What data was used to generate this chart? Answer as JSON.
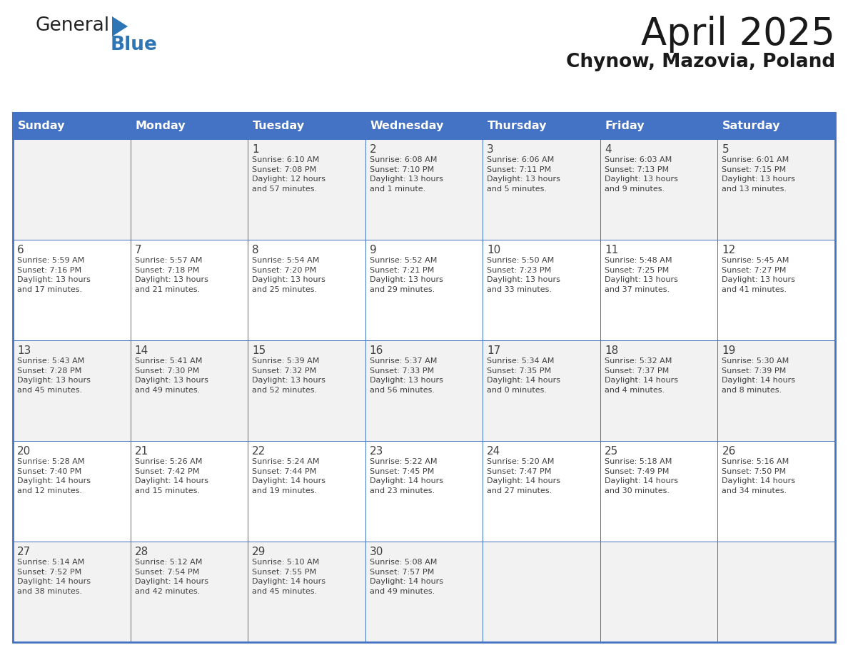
{
  "title": "April 2025",
  "subtitle": "Chynow, Mazovia, Poland",
  "header_bg": "#4472C4",
  "header_text_color": "#FFFFFF",
  "cell_bg_white": "#FFFFFF",
  "cell_bg_gray": "#F2F2F2",
  "border_color": "#4472C4",
  "text_color": "#404040",
  "days_of_week": [
    "Sunday",
    "Monday",
    "Tuesday",
    "Wednesday",
    "Thursday",
    "Friday",
    "Saturday"
  ],
  "weeks": [
    [
      {
        "day": "",
        "info": ""
      },
      {
        "day": "",
        "info": ""
      },
      {
        "day": "1",
        "info": "Sunrise: 6:10 AM\nSunset: 7:08 PM\nDaylight: 12 hours\nand 57 minutes."
      },
      {
        "day": "2",
        "info": "Sunrise: 6:08 AM\nSunset: 7:10 PM\nDaylight: 13 hours\nand 1 minute."
      },
      {
        "day": "3",
        "info": "Sunrise: 6:06 AM\nSunset: 7:11 PM\nDaylight: 13 hours\nand 5 minutes."
      },
      {
        "day": "4",
        "info": "Sunrise: 6:03 AM\nSunset: 7:13 PM\nDaylight: 13 hours\nand 9 minutes."
      },
      {
        "day": "5",
        "info": "Sunrise: 6:01 AM\nSunset: 7:15 PM\nDaylight: 13 hours\nand 13 minutes."
      }
    ],
    [
      {
        "day": "6",
        "info": "Sunrise: 5:59 AM\nSunset: 7:16 PM\nDaylight: 13 hours\nand 17 minutes."
      },
      {
        "day": "7",
        "info": "Sunrise: 5:57 AM\nSunset: 7:18 PM\nDaylight: 13 hours\nand 21 minutes."
      },
      {
        "day": "8",
        "info": "Sunrise: 5:54 AM\nSunset: 7:20 PM\nDaylight: 13 hours\nand 25 minutes."
      },
      {
        "day": "9",
        "info": "Sunrise: 5:52 AM\nSunset: 7:21 PM\nDaylight: 13 hours\nand 29 minutes."
      },
      {
        "day": "10",
        "info": "Sunrise: 5:50 AM\nSunset: 7:23 PM\nDaylight: 13 hours\nand 33 minutes."
      },
      {
        "day": "11",
        "info": "Sunrise: 5:48 AM\nSunset: 7:25 PM\nDaylight: 13 hours\nand 37 minutes."
      },
      {
        "day": "12",
        "info": "Sunrise: 5:45 AM\nSunset: 7:27 PM\nDaylight: 13 hours\nand 41 minutes."
      }
    ],
    [
      {
        "day": "13",
        "info": "Sunrise: 5:43 AM\nSunset: 7:28 PM\nDaylight: 13 hours\nand 45 minutes."
      },
      {
        "day": "14",
        "info": "Sunrise: 5:41 AM\nSunset: 7:30 PM\nDaylight: 13 hours\nand 49 minutes."
      },
      {
        "day": "15",
        "info": "Sunrise: 5:39 AM\nSunset: 7:32 PM\nDaylight: 13 hours\nand 52 minutes."
      },
      {
        "day": "16",
        "info": "Sunrise: 5:37 AM\nSunset: 7:33 PM\nDaylight: 13 hours\nand 56 minutes."
      },
      {
        "day": "17",
        "info": "Sunrise: 5:34 AM\nSunset: 7:35 PM\nDaylight: 14 hours\nand 0 minutes."
      },
      {
        "day": "18",
        "info": "Sunrise: 5:32 AM\nSunset: 7:37 PM\nDaylight: 14 hours\nand 4 minutes."
      },
      {
        "day": "19",
        "info": "Sunrise: 5:30 AM\nSunset: 7:39 PM\nDaylight: 14 hours\nand 8 minutes."
      }
    ],
    [
      {
        "day": "20",
        "info": "Sunrise: 5:28 AM\nSunset: 7:40 PM\nDaylight: 14 hours\nand 12 minutes."
      },
      {
        "day": "21",
        "info": "Sunrise: 5:26 AM\nSunset: 7:42 PM\nDaylight: 14 hours\nand 15 minutes."
      },
      {
        "day": "22",
        "info": "Sunrise: 5:24 AM\nSunset: 7:44 PM\nDaylight: 14 hours\nand 19 minutes."
      },
      {
        "day": "23",
        "info": "Sunrise: 5:22 AM\nSunset: 7:45 PM\nDaylight: 14 hours\nand 23 minutes."
      },
      {
        "day": "24",
        "info": "Sunrise: 5:20 AM\nSunset: 7:47 PM\nDaylight: 14 hours\nand 27 minutes."
      },
      {
        "day": "25",
        "info": "Sunrise: 5:18 AM\nSunset: 7:49 PM\nDaylight: 14 hours\nand 30 minutes."
      },
      {
        "day": "26",
        "info": "Sunrise: 5:16 AM\nSunset: 7:50 PM\nDaylight: 14 hours\nand 34 minutes."
      }
    ],
    [
      {
        "day": "27",
        "info": "Sunrise: 5:14 AM\nSunset: 7:52 PM\nDaylight: 14 hours\nand 38 minutes."
      },
      {
        "day": "28",
        "info": "Sunrise: 5:12 AM\nSunset: 7:54 PM\nDaylight: 14 hours\nand 42 minutes."
      },
      {
        "day": "29",
        "info": "Sunrise: 5:10 AM\nSunset: 7:55 PM\nDaylight: 14 hours\nand 45 minutes."
      },
      {
        "day": "30",
        "info": "Sunrise: 5:08 AM\nSunset: 7:57 PM\nDaylight: 14 hours\nand 49 minutes."
      },
      {
        "day": "",
        "info": ""
      },
      {
        "day": "",
        "info": ""
      },
      {
        "day": "",
        "info": ""
      }
    ]
  ],
  "logo_text1": "General",
  "logo_text2": "Blue",
  "logo_color1": "#222222",
  "logo_color2": "#2E75B6",
  "logo_triangle_color": "#2E75B6",
  "title_fontsize": 38,
  "subtitle_fontsize": 19,
  "header_fontsize": 11.5,
  "day_num_fontsize": 11,
  "info_fontsize": 8.0
}
